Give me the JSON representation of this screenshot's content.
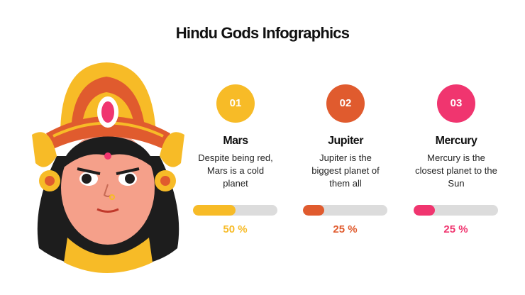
{
  "title": "Hindu Gods Infographics",
  "bar_range": [
    0,
    100
  ],
  "items": [
    {
      "number": "01",
      "name": "Mars",
      "description": "Despite being red, Mars is a cold planet",
      "value": 50,
      "value_label": "50 %",
      "color": "#f7bb27"
    },
    {
      "number": "02",
      "name": "Jupiter",
      "description": "Jupiter is the biggest planet of them all",
      "value": 25,
      "value_label": "25 %",
      "color": "#e05b2e"
    },
    {
      "number": "03",
      "name": "Mercury",
      "description": "Mercury is the closest planet to the Sun",
      "value": 25,
      "value_label": "25 %",
      "color": "#f0356f"
    }
  ]
}
